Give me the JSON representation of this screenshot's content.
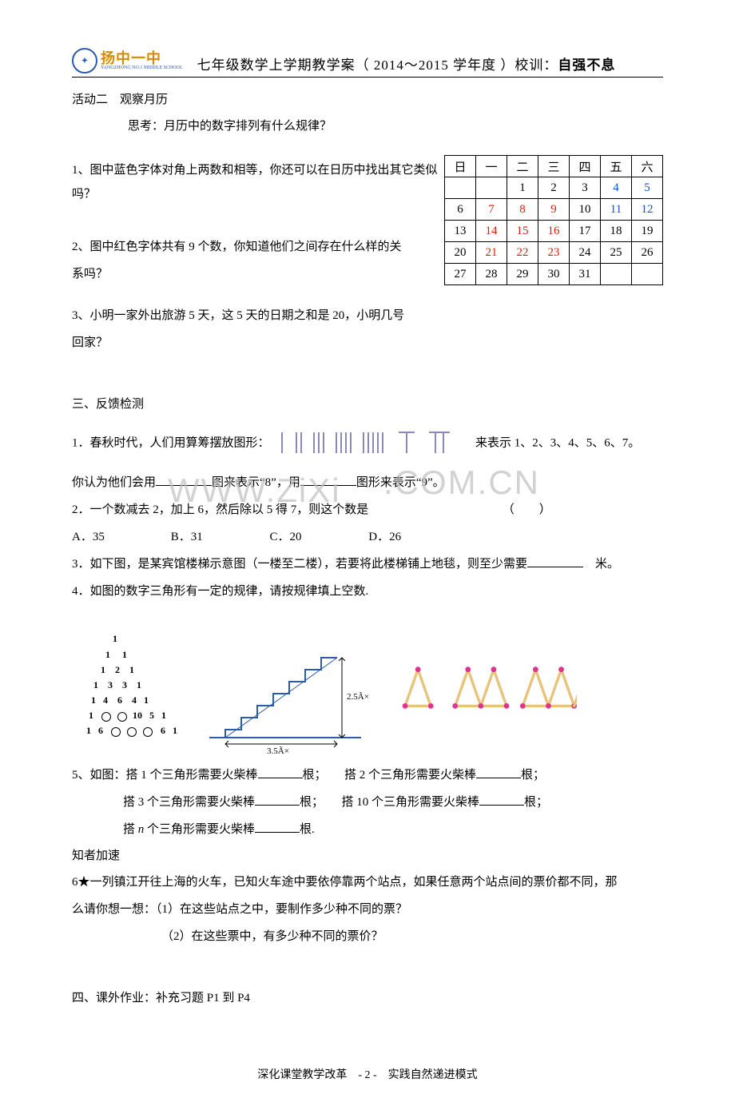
{
  "header": {
    "logo_cn": "扬中一中",
    "logo_sub": "YANGZHONG NO.1 MIDDLE SCHOOL",
    "title_left": "七年级数学上学期教学案（ 2014～2015 学年度 ）校训：",
    "title_bold": "自强不息"
  },
  "activity2": {
    "title": "活动二　观察月历",
    "think": "思考：月历中的数字排列有什么规律？",
    "q1": "1、图中蓝色字体对角上两数和相等，你还可以在日历中找出其它类似吗？",
    "q2a": "2、图中红色字体共有 9 个数，你知道他们之间存在什么样的关",
    "q2b": "系吗？",
    "q3a": "3、小明一家外出旅游 5 天，这 5 天的日期之和是 20，小明几号",
    "q3b": "回家？"
  },
  "calendar": {
    "headers": [
      "日",
      "一",
      "二",
      "三",
      "四",
      "五",
      "六"
    ],
    "rows": [
      [
        {
          "v": "",
          "c": ""
        },
        {
          "v": "",
          "c": ""
        },
        {
          "v": "1",
          "c": ""
        },
        {
          "v": "2",
          "c": ""
        },
        {
          "v": "3",
          "c": ""
        },
        {
          "v": "4",
          "c": "c-blue"
        },
        {
          "v": "5",
          "c": "c-blue"
        }
      ],
      [
        {
          "v": "6",
          "c": ""
        },
        {
          "v": "7",
          "c": "c-red"
        },
        {
          "v": "8",
          "c": "c-red"
        },
        {
          "v": "9",
          "c": "c-red"
        },
        {
          "v": "10",
          "c": ""
        },
        {
          "v": "11",
          "c": "c-blue"
        },
        {
          "v": "12",
          "c": "c-blue"
        }
      ],
      [
        {
          "v": "13",
          "c": ""
        },
        {
          "v": "14",
          "c": "c-red"
        },
        {
          "v": "15",
          "c": "c-red"
        },
        {
          "v": "16",
          "c": "c-red"
        },
        {
          "v": "17",
          "c": ""
        },
        {
          "v": "18",
          "c": ""
        },
        {
          "v": "19",
          "c": ""
        }
      ],
      [
        {
          "v": "20",
          "c": ""
        },
        {
          "v": "21",
          "c": "c-red"
        },
        {
          "v": "22",
          "c": "c-red"
        },
        {
          "v": "23",
          "c": "c-red"
        },
        {
          "v": "24",
          "c": ""
        },
        {
          "v": "25",
          "c": ""
        },
        {
          "v": "26",
          "c": ""
        }
      ],
      [
        {
          "v": "27",
          "c": ""
        },
        {
          "v": "28",
          "c": ""
        },
        {
          "v": "29",
          "c": ""
        },
        {
          "v": "30",
          "c": ""
        },
        {
          "v": "31",
          "c": ""
        },
        {
          "v": "",
          "c": ""
        },
        {
          "v": "",
          "c": ""
        }
      ]
    ]
  },
  "section3": {
    "title": "三、反馈检测",
    "q1a": "1．春秋时代，人们用算筹摆放图形：",
    "q1b": "来表示 1、2、3、4、5、6、7。",
    "q1c": "你认为他们会用",
    "q1d": "图来表示“8”，用",
    "q1e": "图形来表示“9”。",
    "q2": "2．一个数减去 2，加上 6，然后除以 5 得 7，则这个数是",
    "choices": {
      "a": "A．35",
      "b": "B．31",
      "c": "C．20",
      "d": "D．26"
    },
    "q3": "3．如下图，是某宾馆楼梯示意图（一楼至二楼），若要将此楼梯铺上地毯，则至少需要",
    "q3_unit": "米。",
    "q4": "4．如图的数字三角形有一定的规律，请按规律填上空数."
  },
  "watermark": {
    "text1": "WWW.ZiXi",
    "text2": ".COM.CN"
  },
  "stair": {
    "h": "2.5Ã×",
    "w": "3.5Ã×"
  },
  "pascal": {
    "rows": [
      "1",
      "1     1",
      "1    2    1",
      "1    3    3    1",
      "1   4    6    4   1",
      "1   ○  ○  10   5   1",
      "1   6   ○  ○  ○   6   1"
    ]
  },
  "q5": {
    "a": "5、如图：搭 1 个三角形需要火柴棒",
    "b": "根；　　搭 2 个三角形需要火柴棒",
    "c": "根；",
    "d": "搭 3 个三角形需要火柴棒",
    "e": "根；　　搭 10 个三角形需要火柴棒",
    "f": "根；",
    "g_pre": "搭 ",
    "g_n": "n",
    "g_post": " 个三角形需要火柴棒",
    "h": "根."
  },
  "accel": {
    "title": "知者加速",
    "q6a": "6★一列镇江开往上海的火车，已知火车途中要依停靠两个站点，如果任意两个站点间的票价都不同，那",
    "q6b": "么请你想一想：（1）在这些站点之中，要制作多少种不同的票？",
    "q6c": "（2）在这些票中，有多少种不同的票价？"
  },
  "hw": "四、课外作业：补充习题 P1 到 P4",
  "footer": {
    "left": "深化课堂教学改革",
    "page": "- 2 -",
    "right": "实践自然递进模式"
  },
  "colors": {
    "stair_stroke": "#2a5caa",
    "stair_dim": "#000000",
    "match_stick": "#e8c37a",
    "match_head": "#e0338f",
    "tally_stroke": "#8a8ab5"
  }
}
